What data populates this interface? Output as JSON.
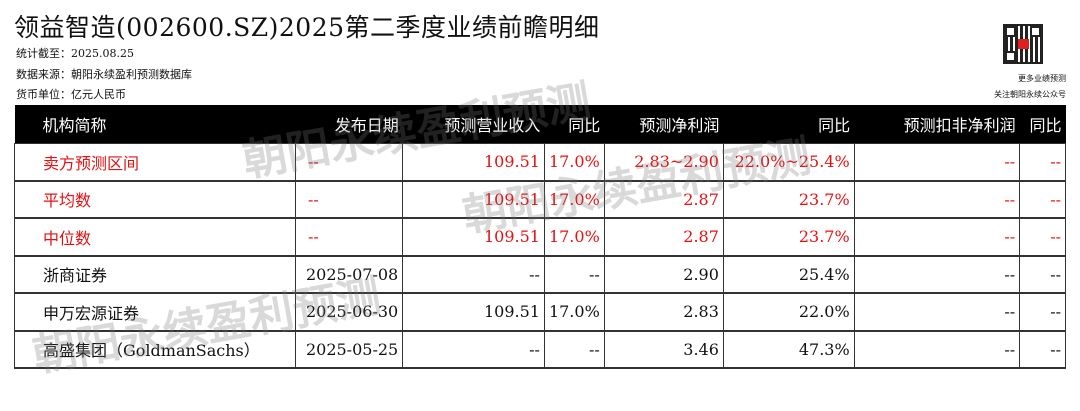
{
  "title": "领益智造(002600.SZ)2025第二季度业绩前瞻明细",
  "meta": {
    "date": "统计截至：2025.08.25",
    "source": "数据来源：朝阳永续盈利预测数据库",
    "unit": "货币单位：亿元人民币"
  },
  "qr": {
    "line1": "更多业绩预测",
    "line2": "关注朝阳永续公众号"
  },
  "watermark": "朝阳永续盈利预测",
  "table": {
    "headers": [
      "机构简称",
      "发布日期",
      "预测营业收入",
      "同比",
      "预测净利润",
      "同比",
      "预测扣非净利润",
      "同比"
    ],
    "summary_rows": [
      [
        "卖方预测区间",
        "--",
        "109.51",
        "17.0%",
        "2.83~2.90",
        "22.0%~25.4%",
        "--",
        "--"
      ],
      [
        "平均数",
        "--",
        "109.51",
        "17.0%",
        "2.87",
        "23.7%",
        "--",
        "--"
      ],
      [
        "中位数",
        "--",
        "109.51",
        "17.0%",
        "2.87",
        "23.7%",
        "--",
        "--"
      ]
    ],
    "rows": [
      [
        "浙商证券",
        "2025-07-08",
        "--",
        "--",
        "2.90",
        "25.4%",
        "--",
        "--"
      ],
      [
        "申万宏源证券",
        "2025-06-30",
        "109.51",
        "17.0%",
        "2.83",
        "22.0%",
        "--",
        "--"
      ],
      [
        "高盛集团（GoldmanSachs）",
        "2025-05-25",
        "--",
        "--",
        "3.46",
        "47.3%",
        "--",
        "--"
      ]
    ]
  },
  "colors": {
    "header_bg": "#000000",
    "summary_text": "#e81010"
  }
}
